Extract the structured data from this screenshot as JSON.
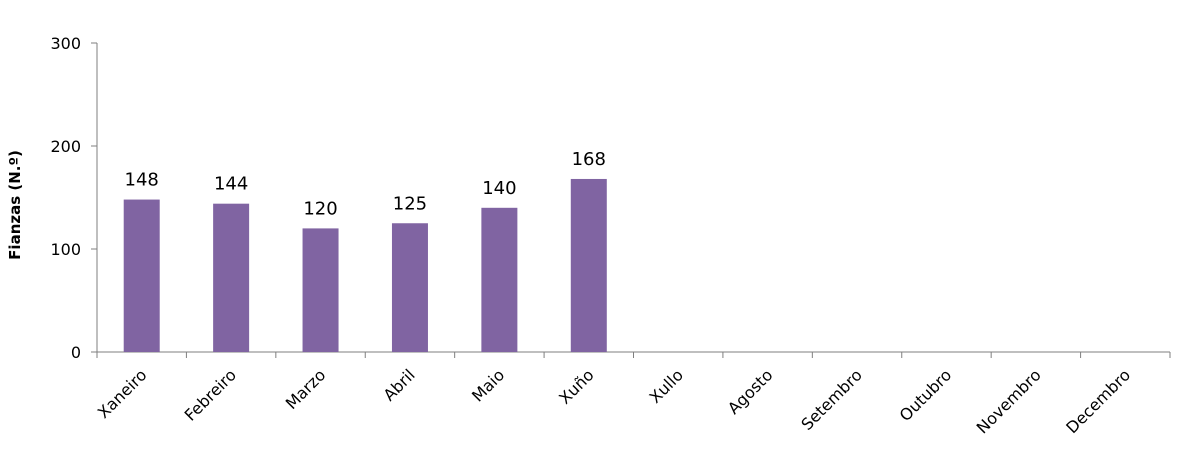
{
  "chart_data": {
    "type": "bar",
    "y_label": "Fianzas (N.º)",
    "categories": [
      "Xaneiro",
      "Febreiro",
      "Marzo",
      "Abril",
      "Maio",
      "Xuño",
      "Xullo",
      "Agosto",
      "Setembro",
      "Outubro",
      "Novembro",
      "Decembro"
    ],
    "values": [
      148,
      144,
      120,
      125,
      140,
      168,
      null,
      null,
      null,
      null,
      null,
      null
    ],
    "color": "#8064a2",
    "ylim": [
      0,
      300
    ],
    "yticks": [
      0,
      100,
      200,
      300
    ],
    "grid": false
  }
}
